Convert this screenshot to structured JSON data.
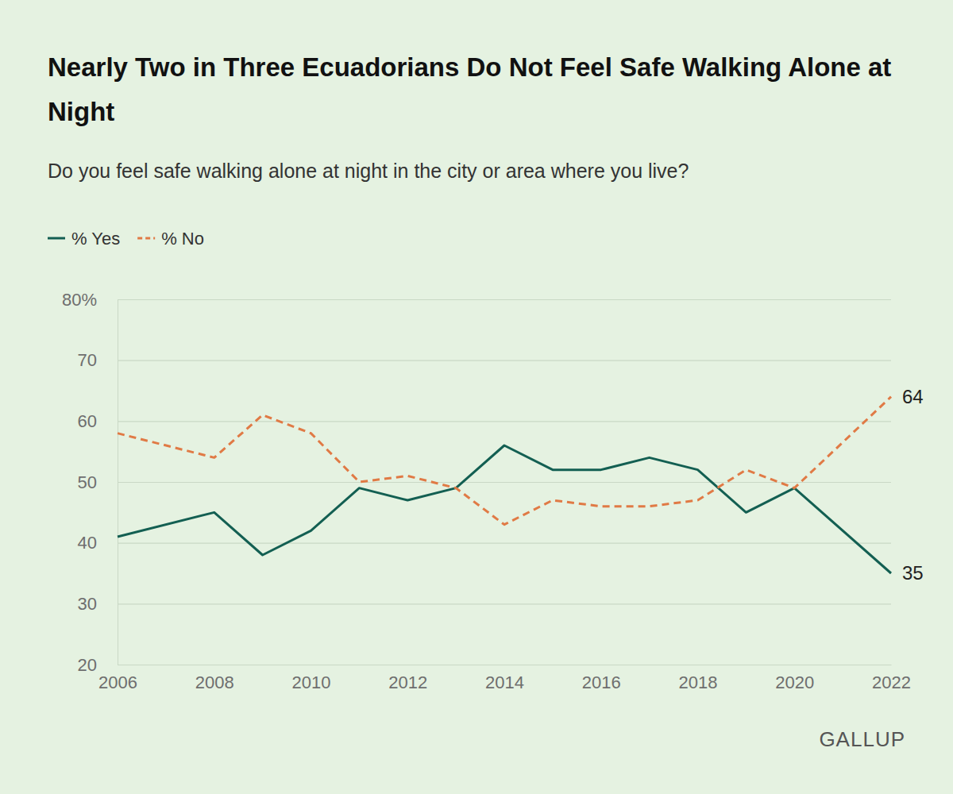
{
  "chart_data": {
    "type": "line",
    "title": "Nearly Two in Three Ecuadorians Do Not Feel Safe Walking Alone at Night",
    "subtitle": "Do you feel safe walking alone at night in the city or area where you live?",
    "source": "GALLUP",
    "x": [
      2006,
      2008,
      2009,
      2010,
      2011,
      2012,
      2013,
      2014,
      2015,
      2016,
      2017,
      2018,
      2019,
      2020,
      2022
    ],
    "series": [
      {
        "name": "% Yes",
        "color": "#135f52",
        "line_style": "solid",
        "values": [
          41,
          45,
          38,
          42,
          49,
          47,
          49,
          56,
          52,
          52,
          54,
          52,
          45,
          49,
          35
        ],
        "value_labels": [
          null,
          null,
          null,
          null,
          null,
          null,
          null,
          null,
          null,
          null,
          null,
          null,
          null,
          null,
          "35"
        ]
      },
      {
        "name": "% No",
        "color": "#e07a45",
        "line_style": "dashed",
        "values": [
          58,
          54,
          61,
          58,
          50,
          51,
          49,
          43,
          47,
          46,
          46,
          47,
          52,
          49,
          64
        ],
        "value_labels": [
          null,
          null,
          null,
          null,
          null,
          null,
          null,
          null,
          null,
          null,
          null,
          null,
          null,
          null,
          "64"
        ]
      }
    ],
    "xlim": [
      2006,
      2022
    ],
    "xticks": [
      2006,
      2008,
      2010,
      2012,
      2014,
      2016,
      2018,
      2020,
      2022
    ],
    "ylim": [
      20,
      80
    ],
    "yticks": [
      20,
      30,
      40,
      50,
      60,
      70,
      {
        "value": 80,
        "label": "80%"
      }
    ],
    "grid": true,
    "legend": "top-left",
    "data_labels": true
  }
}
